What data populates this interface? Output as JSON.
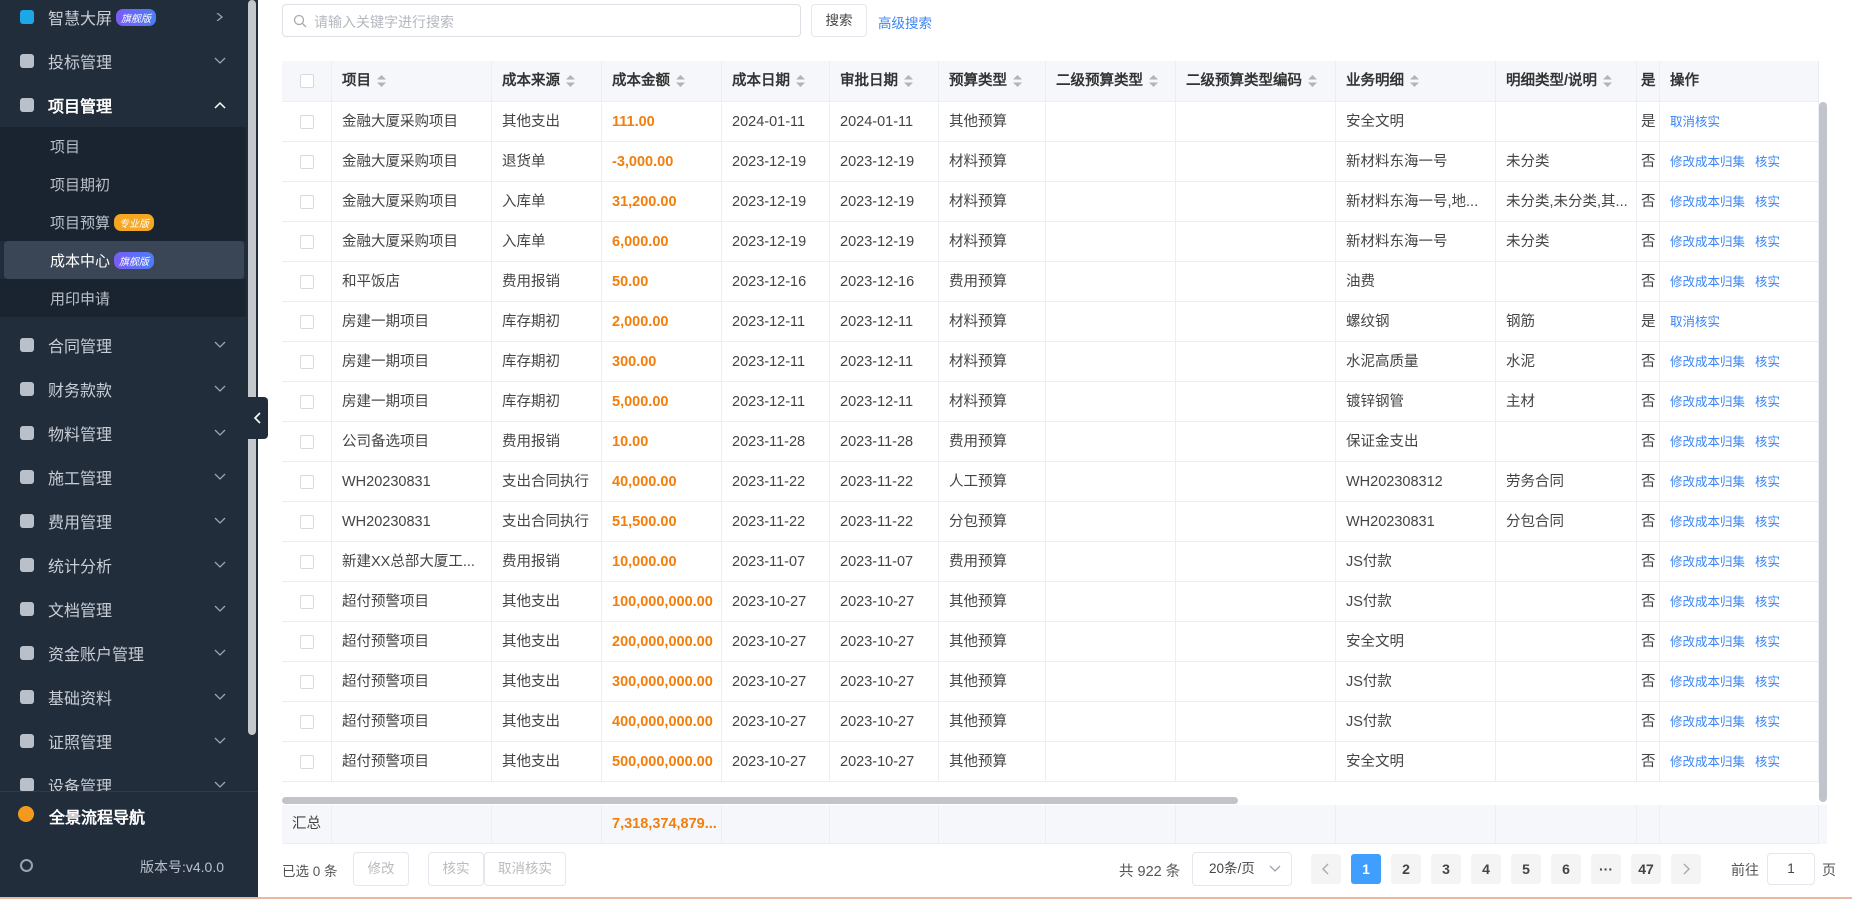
{
  "sidebar": {
    "items": [
      {
        "label": "智慧大屏",
        "badge": "旗舰版"
      },
      {
        "label": "投标管理"
      },
      {
        "label": "项目管理",
        "children": [
          {
            "label": "项目"
          },
          {
            "label": "项目期初"
          },
          {
            "label": "项目预算",
            "badge": "专业版"
          },
          {
            "label": "成本中心",
            "badge": "旗舰版",
            "active": true
          },
          {
            "label": "用印申请"
          }
        ]
      },
      {
        "label": "合同管理"
      },
      {
        "label": "财务款款"
      },
      {
        "label": "物料管理"
      },
      {
        "label": "施工管理"
      },
      {
        "label": "费用管理"
      },
      {
        "label": "统计分析"
      },
      {
        "label": "文档管理"
      },
      {
        "label": "资金账户管理"
      },
      {
        "label": "基础资料"
      },
      {
        "label": "证照管理"
      },
      {
        "label": "设备管理"
      }
    ],
    "footer": {
      "nav": "全景流程导航",
      "version": "版本号:v4.0.0"
    }
  },
  "search": {
    "placeholder": "请输入关键字进行搜索",
    "button": "搜索",
    "advanced": "高级搜索"
  },
  "table": {
    "columns": [
      "项目",
      "成本来源",
      "成本金额",
      "成本日期",
      "审批日期",
      "预算类型",
      "二级预算类型",
      "二级预算类型编码",
      "业务明细",
      "明细类型/说明",
      "是",
      "操作"
    ],
    "rows": [
      [
        "金融大厦采购项目",
        "其他支出",
        "111.00",
        "2024-01-11",
        "2024-01-11",
        "其他预算",
        null,
        null,
        "安全文明",
        null,
        "是",
        [
          "取消核实"
        ]
      ],
      [
        "金融大厦采购项目",
        "退货单",
        "-3,000.00",
        "2023-12-19",
        "2023-12-19",
        "材料预算",
        null,
        null,
        "新材料东海一号",
        "未分类",
        "否",
        [
          "修改成本归集",
          "核实"
        ]
      ],
      [
        "金融大厦采购项目",
        "入库单",
        "31,200.00",
        "2023-12-19",
        "2023-12-19",
        "材料预算",
        null,
        null,
        "新材料东海一号,地...",
        "未分类,未分类,其...",
        "否",
        [
          "修改成本归集",
          "核实"
        ]
      ],
      [
        "金融大厦采购项目",
        "入库单",
        "6,000.00",
        "2023-12-19",
        "2023-12-19",
        "材料预算",
        null,
        null,
        "新材料东海一号",
        "未分类",
        "否",
        [
          "修改成本归集",
          "核实"
        ]
      ],
      [
        "和平饭店",
        "费用报销",
        "50.00",
        "2023-12-16",
        "2023-12-16",
        "费用预算",
        null,
        null,
        "油费",
        null,
        "否",
        [
          "修改成本归集",
          "核实"
        ]
      ],
      [
        "房建一期项目",
        "库存期初",
        "2,000.00",
        "2023-12-11",
        "2023-12-11",
        "材料预算",
        null,
        null,
        "螺纹钢",
        "钢筋",
        "是",
        [
          "取消核实"
        ]
      ],
      [
        "房建一期项目",
        "库存期初",
        "300.00",
        "2023-12-11",
        "2023-12-11",
        "材料预算",
        null,
        null,
        "水泥高质量",
        "水泥",
        "否",
        [
          "修改成本归集",
          "核实"
        ]
      ],
      [
        "房建一期项目",
        "库存期初",
        "5,000.00",
        "2023-12-11",
        "2023-12-11",
        "材料预算",
        null,
        null,
        "镀锌钢管",
        "主材",
        "否",
        [
          "修改成本归集",
          "核实"
        ]
      ],
      [
        "公司备选项目",
        "费用报销",
        "10.00",
        "2023-11-28",
        "2023-11-28",
        "费用预算",
        null,
        null,
        "保证金支出",
        null,
        "否",
        [
          "修改成本归集",
          "核实"
        ]
      ],
      [
        "WH20230831",
        "支出合同执行",
        "40,000.00",
        "2023-11-22",
        "2023-11-22",
        "人工预算",
        null,
        null,
        "WH202308312",
        "劳务合同",
        "否",
        [
          "修改成本归集",
          "核实"
        ]
      ],
      [
        "WH20230831",
        "支出合同执行",
        "51,500.00",
        "2023-11-22",
        "2023-11-22",
        "分包预算",
        null,
        null,
        "WH20230831",
        "分包合同",
        "否",
        [
          "修改成本归集",
          "核实"
        ]
      ],
      [
        "新建XX总部大厦工...",
        "费用报销",
        "10,000.00",
        "2023-11-07",
        "2023-11-07",
        "费用预算",
        null,
        null,
        "JS付款",
        null,
        "否",
        [
          "修改成本归集",
          "核实"
        ]
      ],
      [
        "超付预警项目",
        "其他支出",
        "100,000,000.00",
        "2023-10-27",
        "2023-10-27",
        "其他预算",
        null,
        null,
        "JS付款",
        null,
        "否",
        [
          "修改成本归集",
          "核实"
        ]
      ],
      [
        "超付预警项目",
        "其他支出",
        "200,000,000.00",
        "2023-10-27",
        "2023-10-27",
        "其他预算",
        null,
        null,
        "安全文明",
        null,
        "否",
        [
          "修改成本归集",
          "核实"
        ]
      ],
      [
        "超付预警项目",
        "其他支出",
        "300,000,000.00",
        "2023-10-27",
        "2023-10-27",
        "其他预算",
        null,
        null,
        "JS付款",
        null,
        "否",
        [
          "修改成本归集",
          "核实"
        ]
      ],
      [
        "超付预警项目",
        "其他支出",
        "400,000,000.00",
        "2023-10-27",
        "2023-10-27",
        "其他预算",
        null,
        null,
        "JS付款",
        null,
        "否",
        [
          "修改成本归集",
          "核实"
        ]
      ],
      [
        "超付预警项目",
        "其他支出",
        "500,000,000.00",
        "2023-10-27",
        "2023-10-27",
        "其他预算",
        null,
        null,
        "安全文明",
        null,
        "否",
        [
          "修改成本归集",
          "核实"
        ]
      ]
    ],
    "summary": {
      "label": "汇总",
      "amount": "7,318,374,879..."
    }
  },
  "footer": {
    "selected": "已选 0 条",
    "buttons": [
      "修改",
      "核实",
      "取消核实"
    ],
    "total": "共 922 条",
    "page_size": "20条/页",
    "pages": [
      1,
      2,
      3,
      4,
      5,
      6,
      "···",
      47
    ],
    "current_page": 1,
    "goto_label": "前往",
    "goto_value": 1,
    "page_unit": "页"
  }
}
